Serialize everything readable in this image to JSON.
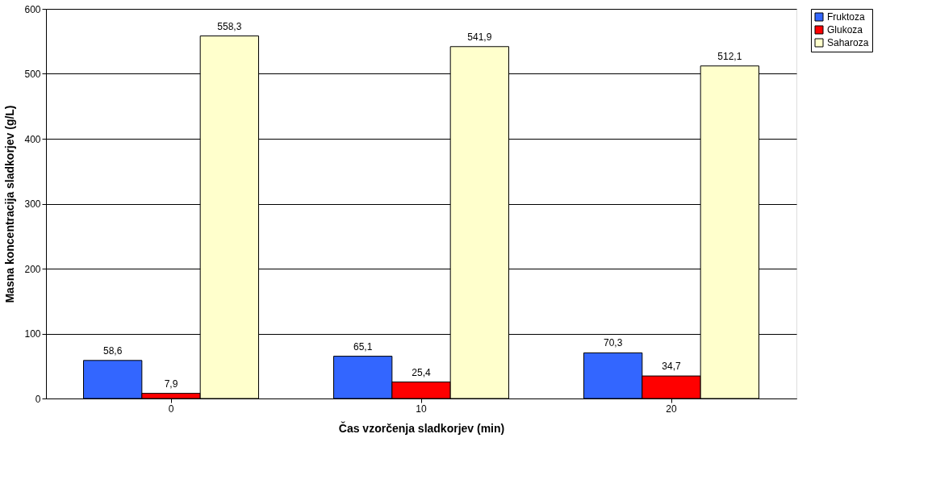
{
  "chart_data": {
    "type": "bar",
    "xlabel": "Čas vzorčenja sladkorjev (min)",
    "ylabel": "Masna koncentracija sladkorjev (g/L)",
    "categories": [
      "0",
      "10",
      "20"
    ],
    "series": [
      {
        "name": "Fruktoza",
        "color": "#3366ff",
        "values": [
          58.6,
          65.1,
          70.3
        ],
        "value_labels": [
          "58,6",
          "65,1",
          "70,3"
        ]
      },
      {
        "name": "Glukoza",
        "color": "#ff0000",
        "values": [
          7.9,
          25.4,
          34.7
        ],
        "value_labels": [
          "7,9",
          "25,4",
          "34,7"
        ]
      },
      {
        "name": "Saharoza",
        "color": "#ffffcc",
        "values": [
          558.3,
          541.9,
          512.1
        ],
        "value_labels": [
          "558,3",
          "541,9",
          "512,1"
        ]
      }
    ],
    "ylim": [
      0,
      600
    ],
    "yticks": [
      0,
      100,
      200,
      300,
      400,
      500,
      600
    ],
    "grid": "y",
    "legend": "right"
  }
}
